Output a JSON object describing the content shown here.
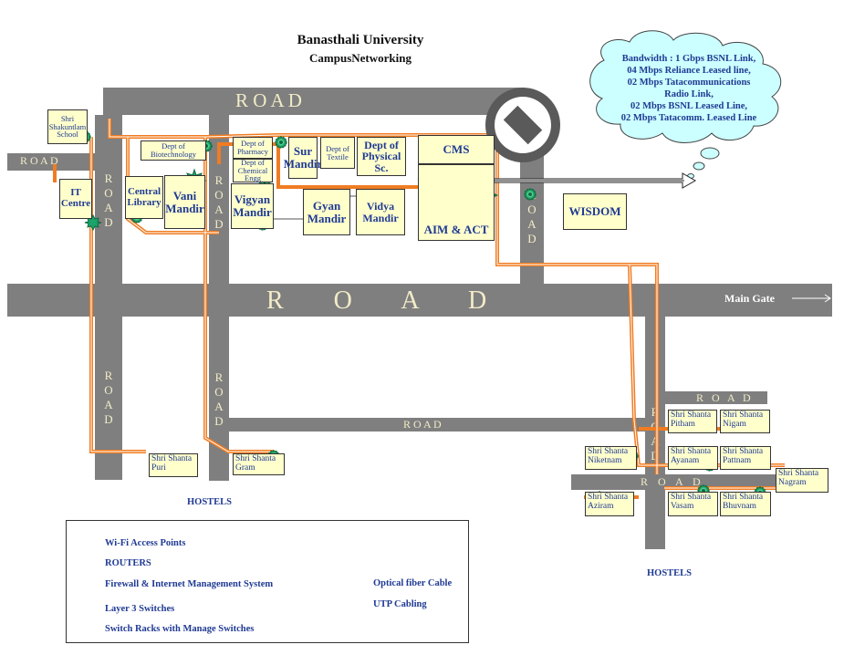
{
  "title": {
    "line1": "Banasthali University",
    "line2": "CampusNetworking"
  },
  "bandwidth": {
    "lines": [
      "Bandwidth :  1 Gbps BSNL Link,",
      "04 Mbps  Reliance  Leased line,",
      "02 Mbps  Tatacommunications",
      "Radio Link,",
      "02 Mbps BSNL Leased Line,",
      "02 Mbps Tatacomm. Leased Line"
    ]
  },
  "roads": {
    "top": "R   O   A   D",
    "left": "R  O  A  D",
    "main": "R   O   A   D",
    "lower": "R  O  A  D",
    "hostel_top": "R O A D",
    "hostel_mid": "R O A D",
    "vertical": "ROAD",
    "main_gate": "Main Gate"
  },
  "buildings": {
    "shakuntam": "Shri Shakuntlam School",
    "it_centre": "IT Centre",
    "central_library": "Central Library",
    "biotech": "Dept of Biotechnology",
    "vani": "Vani Mandir",
    "pharmacy": "Dept of Pharmacy",
    "chemical": "Dept of Chemical Engg",
    "vigyan": "Vigyan Mandir",
    "sur": "Sur Mandir",
    "textile": "Dept of Textile",
    "physical": "Dept of Physical Sc.",
    "gyan": "Gyan Mandir",
    "vidya": "Vidya Mandir",
    "cms": "CMS",
    "aim": "AIM & ACT",
    "wisdom": "WISDOM",
    "puri": "Shri Shanta Puri",
    "gram": "Shri Shanta Gram",
    "pitham": "Shri Shanta Pitham",
    "nigam": "Shri Shanta Nigam",
    "niketan": "Shri Shanta Niketnam",
    "ayanam": "Shri Shanta Ayanam",
    "pattnam": "Shri Shanta Pattnam",
    "nagram": "Shri Shanta Nagram",
    "aziram": "Shri Shanta Aziram",
    "vasam": "Shri Shanta Vasam",
    "bhuvnam": "Shri Shanta Bhuvnam"
  },
  "hostels_labels": {
    "left": "HOSTELS",
    "right": "HOSTELS"
  },
  "legend": {
    "wifi": "Wi-Fi Access Points",
    "routers": "ROUTERS",
    "firewall": "Firewall & Internet Management System",
    "layer3": "Layer 3 Switches",
    "racks": "Switch Racks with Manage Switches",
    "fiber": "Optical fiber Cable",
    "utp": "UTP Cabling"
  },
  "colors": {
    "road": "#7f7f7f",
    "building_fill": "#ffffcc",
    "fiber": "#f07c22",
    "cloud": "#ccffff",
    "label_blue": "#1f3a93",
    "switch_green": "#1aa36b"
  }
}
